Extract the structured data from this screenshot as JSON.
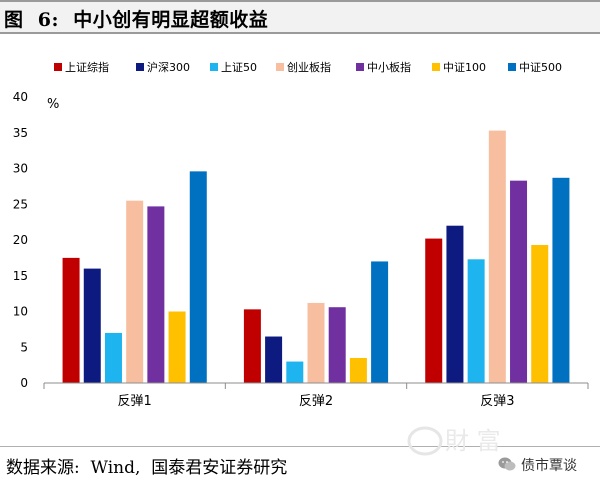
{
  "figure": {
    "title": "图  6:  中小创有明显超额收益",
    "source": "数据来源:  Wind,  国泰君安证券研究"
  },
  "watermark": {
    "account": "债市覃谈",
    "logo_text": "財 富"
  },
  "chart_data": {
    "type": "bar",
    "title": "",
    "xlabel": "",
    "ylabel": "%",
    "ylim": [
      0,
      40
    ],
    "yticks": [
      0,
      5,
      10,
      15,
      20,
      25,
      30,
      35,
      40
    ],
    "grid": false,
    "legend_position": "top",
    "categories": [
      "反弹1",
      "反弹2",
      "反弹3"
    ],
    "series": [
      {
        "name": "上证综指",
        "color": "#c00000",
        "values": [
          17.5,
          10.3,
          20.2
        ]
      },
      {
        "name": "沪深300",
        "color": "#0d1a80",
        "values": [
          16.0,
          6.5,
          22.0
        ]
      },
      {
        "name": "上证50",
        "color": "#1eb4f0",
        "values": [
          7.0,
          3.0,
          17.3
        ]
      },
      {
        "name": "创业板指",
        "color": "#f7bfa0",
        "values": [
          25.5,
          11.2,
          35.3
        ]
      },
      {
        "name": "中小板指",
        "color": "#7030a0",
        "values": [
          24.7,
          10.6,
          28.3
        ]
      },
      {
        "name": "中证100",
        "color": "#ffc000",
        "values": [
          10.0,
          3.5,
          19.3
        ]
      },
      {
        "name": "中证500",
        "color": "#0070c0",
        "values": [
          29.6,
          17.0,
          28.7
        ]
      }
    ]
  }
}
